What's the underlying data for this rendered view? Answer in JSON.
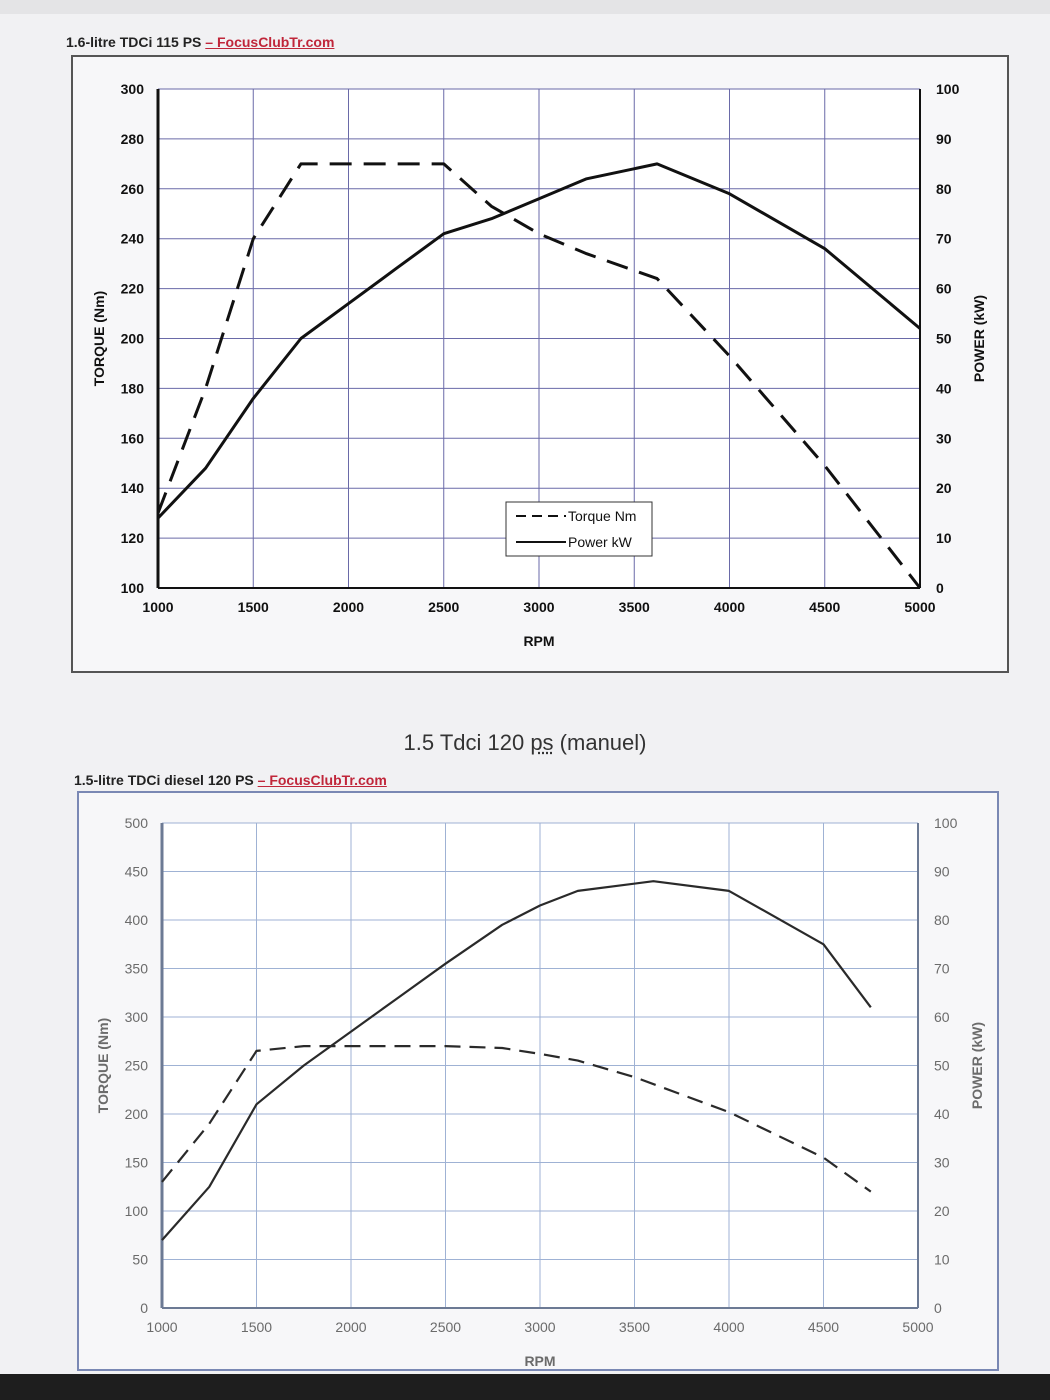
{
  "heading": {
    "text": "1.5 Tdci 120 ",
    "ps": "ps",
    "tail": " (manuel)"
  },
  "chart_data": [
    {
      "type": "line",
      "title": "1.6-litre TDCi 115 PS",
      "title_brand": "– FocusClubTr.com",
      "xlabel": "RPM",
      "ylabel": "TORQUE (Nm)",
      "y2label": "POWER (kW)",
      "xlim": [
        1000,
        5000
      ],
      "ylim": [
        100,
        300
      ],
      "y2lim": [
        0,
        100
      ],
      "xticks": [
        1000,
        1500,
        2000,
        2500,
        3000,
        3500,
        4000,
        4500,
        5000
      ],
      "yticks": [
        100,
        120,
        140,
        160,
        180,
        200,
        220,
        240,
        260,
        280,
        300
      ],
      "y2ticks": [
        0,
        10,
        20,
        30,
        40,
        50,
        60,
        70,
        80,
        90,
        100
      ],
      "grid": true,
      "legend": "bottom-center",
      "series": [
        {
          "name": "Torque Nm",
          "axis": "left",
          "style": "dashed",
          "x": [
            1000,
            1250,
            1500,
            1750,
            2000,
            2250,
            2500,
            2750,
            3000,
            3250,
            3620,
            4000,
            4500,
            5000
          ],
          "y": [
            130,
            180,
            240,
            270,
            270,
            270,
            270,
            253,
            242,
            234,
            224,
            193,
            149,
            100
          ]
        },
        {
          "name": "Power kW",
          "axis": "right",
          "style": "solid",
          "x": [
            1000,
            1250,
            1500,
            1750,
            2000,
            2250,
            2500,
            2750,
            3000,
            3250,
            3620,
            4000,
            4500,
            5000
          ],
          "y": [
            14,
            24,
            38,
            50,
            57,
            64,
            71,
            74,
            78,
            82,
            85,
            79,
            68,
            52
          ]
        }
      ]
    },
    {
      "type": "line",
      "title": "1.5-litre TDCi diesel 120 PS",
      "title_brand": "– FocusClubTr.com",
      "xlabel": "RPM",
      "ylabel": "TORQUE (Nm)",
      "y2label": "POWER (kW)",
      "xlim": [
        1000,
        5000
      ],
      "ylim": [
        0,
        500
      ],
      "y2lim": [
        0,
        100
      ],
      "xticks": [
        1000,
        1500,
        2000,
        2500,
        3000,
        3500,
        4000,
        4500,
        5000
      ],
      "yticks": [
        0,
        50,
        100,
        150,
        200,
        250,
        300,
        350,
        400,
        450,
        500
      ],
      "y2ticks": [
        0,
        10,
        20,
        30,
        40,
        50,
        60,
        70,
        80,
        90,
        100
      ],
      "grid": true,
      "series": [
        {
          "axis": "left",
          "style": "dashed",
          "x": [
            1000,
            1250,
            1500,
            1750,
            2000,
            2250,
            2500,
            2800,
            3000,
            3200,
            3500,
            4000,
            4500,
            4750
          ],
          "y": [
            130,
            190,
            265,
            270,
            270,
            270,
            270,
            268,
            262,
            255,
            238,
            202,
            155,
            120
          ]
        },
        {
          "axis": "right",
          "style": "solid",
          "x": [
            1000,
            1250,
            1500,
            1750,
            2000,
            2250,
            2500,
            2800,
            3000,
            3200,
            3600,
            4000,
            4500,
            4750
          ],
          "y": [
            14,
            25,
            42,
            50,
            57,
            64,
            71,
            79,
            83,
            86,
            88,
            86,
            75,
            62
          ]
        }
      ]
    }
  ]
}
